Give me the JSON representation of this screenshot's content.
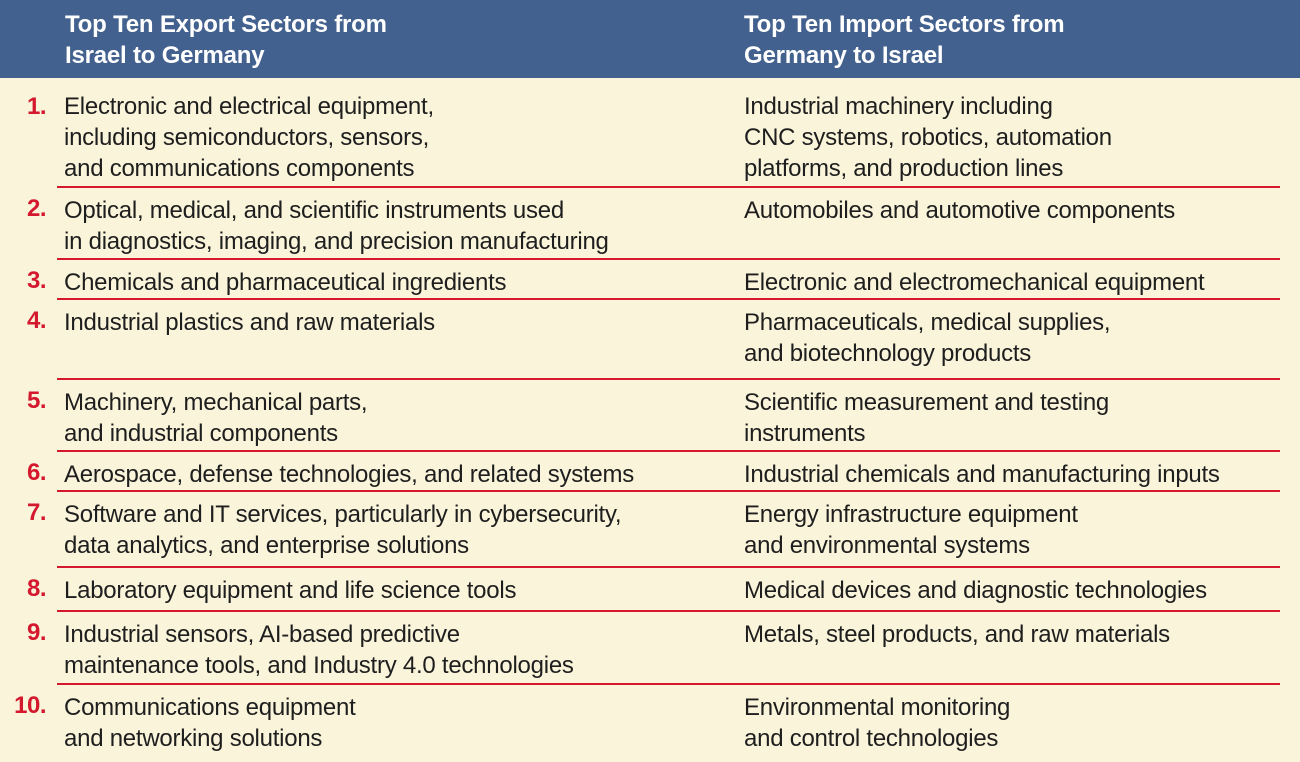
{
  "colors": {
    "header_bg": "#43618e",
    "body_bg": "#f9f4da",
    "accent_red": "#d4182e",
    "header_text": "#ffffff",
    "body_text": "#1e1e1e"
  },
  "header": {
    "left_title": "Top Ten Export Sectors from\nIsrael to Germany",
    "right_title": "Top Ten Import Sectors from\nGermany to Israel"
  },
  "rows": [
    {
      "num": "1.",
      "left": "Electronic and electrical equipment,\nincluding semiconductors, sensors,\nand communications components",
      "right": "Industrial machinery including\nCNC systems, robotics, automation\nplatforms, and production lines"
    },
    {
      "num": "2.",
      "left": "Optical, medical, and scientific instruments used\nin diagnostics, imaging, and precision manufacturing",
      "right": "Automobiles and automotive components"
    },
    {
      "num": "3.",
      "left": "Chemicals and pharmaceutical ingredients",
      "right": "Electronic and electromechanical equipment"
    },
    {
      "num": "4.",
      "left": "Industrial plastics and raw materials",
      "right": "Pharmaceuticals, medical supplies,\nand biotechnology products"
    },
    {
      "num": "5.",
      "left": "Machinery, mechanical parts,\nand industrial components",
      "right": "Scientific measurement and testing\ninstruments"
    },
    {
      "num": "6.",
      "left": "Aerospace, defense technologies, and related systems",
      "right": "Industrial chemicals and manufacturing inputs"
    },
    {
      "num": "7.",
      "left": "Software and IT services, particularly in cybersecurity,\ndata analytics, and enterprise solutions",
      "right": "Energy infrastructure equipment\nand environmental systems"
    },
    {
      "num": "8.",
      "left": "Laboratory equipment and life science tools",
      "right": "Medical devices and diagnostic technologies"
    },
    {
      "num": "9.",
      "left": "Industrial sensors, AI-based predictive\nmaintenance tools, and Industry 4.0 technologies",
      "right": "Metals, steel products, and raw materials"
    },
    {
      "num": "10.",
      "left": "Communications equipment\nand networking solutions",
      "right": "Environmental monitoring\nand control technologies"
    }
  ]
}
